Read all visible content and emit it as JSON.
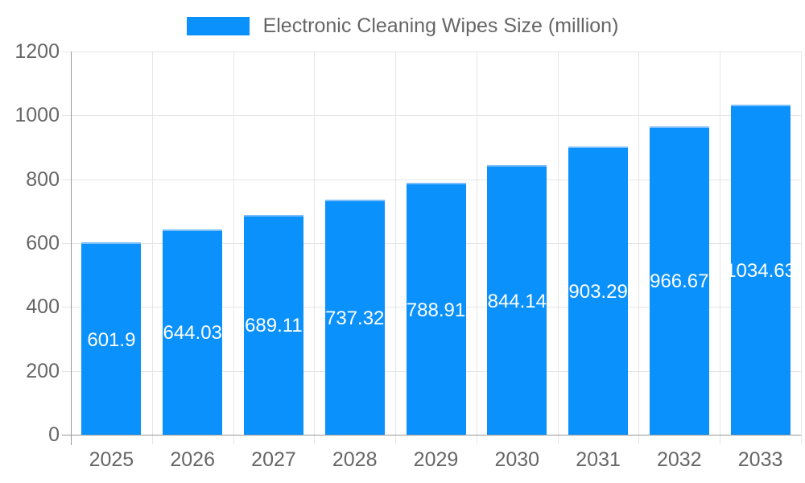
{
  "chart_data": {
    "type": "bar",
    "title": "Electronic Cleaning Wipes Size (million)",
    "legend": {
      "label": "Electronic Cleaning Wipes Size (million)",
      "position": "top"
    },
    "categories": [
      "2025",
      "2026",
      "2027",
      "2028",
      "2029",
      "2030",
      "2031",
      "2032",
      "2033"
    ],
    "series": [
      {
        "name": "Electronic Cleaning Wipes Size (million)",
        "values": [
          601.9,
          644.03,
          689.11,
          737.32,
          788.91,
          844.14,
          903.29,
          966.67,
          1034.63
        ]
      }
    ],
    "value_labels": [
      "601.9",
      "644.03",
      "689.11",
      "737.32",
      "788.91",
      "844.14",
      "903.29",
      "966.67",
      "1034.63"
    ],
    "xlabel": "",
    "ylabel": "",
    "ylim": [
      0,
      1200
    ],
    "y_ticks": [
      0,
      200,
      400,
      600,
      800,
      1000,
      1200
    ],
    "grid": true,
    "colors": {
      "bar": "#0A91FB",
      "bar_border_top": "#7CBEFB",
      "value_label": "#FFFFFF",
      "axis_text": "#666666",
      "grid_line": "#E6E6E6",
      "axis_line": "#989898",
      "background": "#FFFFFF"
    }
  }
}
